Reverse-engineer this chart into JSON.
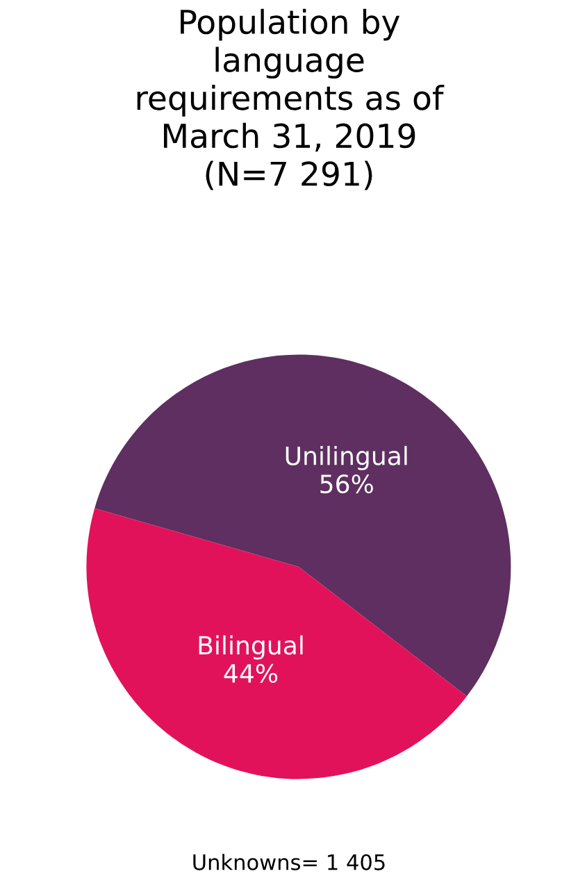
{
  "chart_data": {
    "type": "pie",
    "title": "Population by\nlanguage\nrequirements as of\nMarch 31, 2019\n(N=7 291)",
    "categories": [
      "Unilingual",
      "Bilingual"
    ],
    "values": [
      56,
      44
    ],
    "value_labels": [
      "56%",
      "44%"
    ],
    "colors": [
      "#5e2f60",
      "#e2125a"
    ],
    "annotations": [
      "Unknowns= 1 405"
    ],
    "legend": false
  }
}
